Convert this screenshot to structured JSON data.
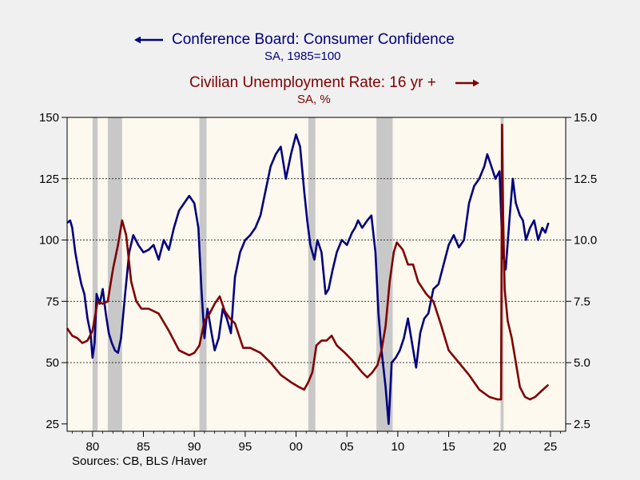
{
  "colors": {
    "page_background": "#f0f0f0",
    "plot_background": "#fdf9ef",
    "recession_shading": "#c8c8c8",
    "consumer_confidence": "#000080",
    "unemployment_rate": "#800000"
  },
  "legend": {
    "series1": {
      "name": "Conference Board: Consumer Confidence",
      "sub": "SA, 1985=100",
      "arrow": "left-arrow-icon"
    },
    "series2": {
      "name": "Civilian Unemployment Rate: 16 yr +",
      "sub": "SA, %",
      "arrow": "right-arrow-icon"
    }
  },
  "source": "Sources:  CB, BLS /Haver",
  "chart_data": {
    "type": "line",
    "x_axis": {
      "range": [
        1977.5,
        2026.5
      ],
      "ticks": [
        1980,
        1985,
        1990,
        1995,
        2000,
        2005,
        2010,
        2015,
        2020,
        2025
      ],
      "tick_labels": [
        "80",
        "85",
        "90",
        "95",
        "00",
        "05",
        "10",
        "15",
        "20",
        "25"
      ]
    },
    "y_left": {
      "range": [
        22,
        150
      ],
      "ticks": [
        25,
        50,
        75,
        100,
        125,
        150
      ],
      "tick_labels": [
        "25",
        "50",
        "75",
        "100",
        "125",
        "150"
      ]
    },
    "y_right": {
      "range": [
        2.2,
        15.0
      ],
      "ticks": [
        2.5,
        5.0,
        7.5,
        10.0,
        12.5,
        15.0
      ],
      "tick_labels": [
        "2.5",
        "5.0",
        "7.5",
        "10.0",
        "12.5",
        "15.0"
      ]
    },
    "gridlines_left": [
      50,
      75,
      100,
      125
    ],
    "grid": "dashed horizontal",
    "recessions": [
      [
        1980.0,
        1980.5
      ],
      [
        1981.5,
        1982.9
      ],
      [
        1990.5,
        1991.2
      ],
      [
        2001.2,
        2001.9
      ],
      [
        2007.9,
        2009.5
      ],
      [
        2020.1,
        2020.4
      ]
    ],
    "series": [
      {
        "name": "Conference Board: Consumer Confidence",
        "axis": "left",
        "x": [
          1977.5,
          1977.8,
          1978.0,
          1978.3,
          1978.6,
          1978.9,
          1979.2,
          1979.5,
          1979.8,
          1980.0,
          1980.2,
          1980.4,
          1980.7,
          1981.0,
          1981.3,
          1981.6,
          1981.9,
          1982.2,
          1982.5,
          1982.8,
          1983.2,
          1983.6,
          1984.0,
          1984.5,
          1985.0,
          1985.5,
          1986.0,
          1986.5,
          1987.0,
          1987.5,
          1988.0,
          1988.5,
          1989.0,
          1989.5,
          1990.0,
          1990.4,
          1990.7,
          1991.0,
          1991.3,
          1991.7,
          1992.0,
          1992.4,
          1992.8,
          1993.2,
          1993.6,
          1994.0,
          1994.5,
          1995.0,
          1995.5,
          1996.0,
          1996.5,
          1997.0,
          1997.5,
          1998.0,
          1998.5,
          1999.0,
          1999.5,
          2000.0,
          2000.4,
          2000.8,
          2001.1,
          2001.4,
          2001.8,
          2002.1,
          2002.5,
          2002.9,
          2003.2,
          2003.6,
          2004.0,
          2004.5,
          2005.0,
          2005.5,
          2005.8,
          2006.1,
          2006.5,
          2007.0,
          2007.4,
          2007.8,
          2008.1,
          2008.4,
          2008.8,
          2009.1,
          2009.4,
          2009.8,
          2010.2,
          2010.6,
          2011.0,
          2011.4,
          2011.8,
          2012.2,
          2012.6,
          2013.0,
          2013.5,
          2014.0,
          2014.5,
          2015.0,
          2015.5,
          2016.0,
          2016.5,
          2017.0,
          2017.5,
          2018.0,
          2018.5,
          2018.8,
          2019.2,
          2019.6,
          2020.0,
          2020.3,
          2020.6,
          2021.0,
          2021.3,
          2021.6,
          2022.0,
          2022.3,
          2022.6,
          2023.0,
          2023.4,
          2023.8,
          2024.2,
          2024.5,
          2024.8
        ],
        "values": [
          107,
          108,
          105,
          95,
          88,
          82,
          78,
          68,
          62,
          52,
          58,
          78,
          74,
          80,
          70,
          62,
          58,
          55,
          54,
          60,
          78,
          95,
          102,
          98,
          95,
          96,
          98,
          92,
          100,
          96,
          105,
          112,
          115,
          118,
          115,
          105,
          80,
          60,
          72,
          62,
          55,
          60,
          72,
          68,
          62,
          85,
          95,
          100,
          102,
          105,
          110,
          120,
          130,
          135,
          138,
          125,
          135,
          143,
          138,
          120,
          108,
          98,
          92,
          100,
          95,
          78,
          80,
          88,
          95,
          100,
          98,
          103,
          105,
          108,
          105,
          108,
          110,
          95,
          70,
          55,
          40,
          25,
          50,
          52,
          55,
          60,
          68,
          58,
          48,
          62,
          68,
          70,
          80,
          82,
          90,
          98,
          102,
          97,
          100,
          115,
          122,
          125,
          130,
          135,
          130,
          125,
          128,
          95,
          88,
          110,
          125,
          115,
          110,
          108,
          100,
          105,
          108,
          100,
          105,
          103,
          107
        ]
      },
      {
        "name": "Civilian Unemployment Rate: 16 yr +",
        "axis": "right",
        "x": [
          1977.5,
          1978.0,
          1978.5,
          1979.0,
          1979.5,
          1980.0,
          1980.5,
          1981.0,
          1981.5,
          1982.0,
          1982.5,
          1982.9,
          1983.3,
          1983.8,
          1984.3,
          1984.8,
          1985.5,
          1986.5,
          1987.5,
          1988.5,
          1989.5,
          1990.0,
          1990.5,
          1991.0,
          1991.5,
          1992.0,
          1992.5,
          1993.0,
          1993.5,
          1994.0,
          1994.8,
          1995.5,
          1996.5,
          1997.5,
          1998.5,
          1999.5,
          2000.3,
          2000.8,
          2001.2,
          2001.6,
          2002.0,
          2002.5,
          2003.0,
          2003.5,
          2004.0,
          2004.8,
          2005.5,
          2006.5,
          2007.0,
          2007.5,
          2008.0,
          2008.4,
          2008.8,
          2009.2,
          2009.6,
          2009.9,
          2010.5,
          2011.0,
          2011.5,
          2012.0,
          2012.8,
          2013.5,
          2014.2,
          2015.0,
          2016.0,
          2017.0,
          2018.0,
          2019.0,
          2019.8,
          2020.15,
          2020.25,
          2020.35,
          2020.5,
          2020.8,
          2021.2,
          2021.6,
          2022.0,
          2022.5,
          2023.0,
          2023.5,
          2024.0,
          2024.8
        ],
        "values": [
          6.4,
          6.1,
          6.0,
          5.8,
          5.9,
          6.3,
          7.5,
          7.4,
          7.5,
          8.8,
          9.8,
          10.8,
          10.2,
          8.3,
          7.5,
          7.2,
          7.2,
          7.0,
          6.3,
          5.5,
          5.3,
          5.4,
          5.7,
          6.7,
          7.0,
          7.4,
          7.7,
          7.1,
          6.8,
          6.6,
          5.6,
          5.6,
          5.4,
          5.0,
          4.5,
          4.2,
          4.0,
          3.9,
          4.2,
          4.6,
          5.7,
          5.9,
          5.9,
          6.1,
          5.7,
          5.4,
          5.1,
          4.6,
          4.4,
          4.6,
          4.9,
          5.5,
          6.5,
          8.3,
          9.5,
          9.9,
          9.6,
          9.0,
          9.0,
          8.3,
          7.8,
          7.5,
          6.6,
          5.5,
          5.0,
          4.5,
          3.9,
          3.6,
          3.5,
          3.5,
          14.7,
          11.0,
          8.0,
          6.7,
          6.0,
          5.0,
          4.0,
          3.6,
          3.5,
          3.6,
          3.8,
          4.1
        ]
      }
    ]
  }
}
